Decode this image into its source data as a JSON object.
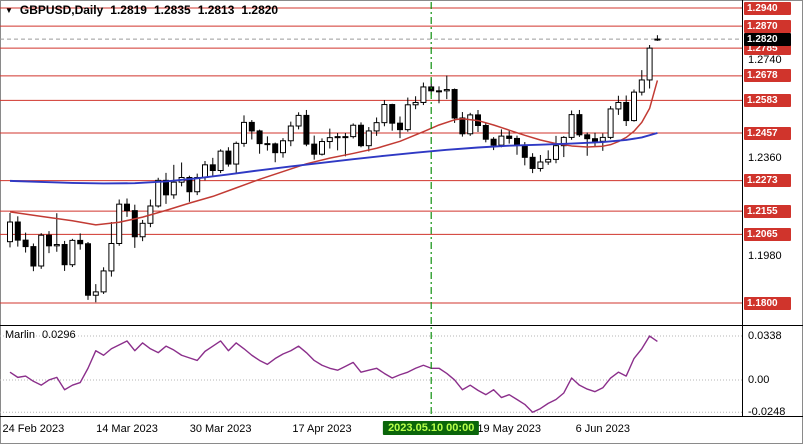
{
  "header": {
    "symbol_period": "GBPUSD,Daily",
    "ohlc": {
      "open": "1.2819",
      "high": "1.2835",
      "low": "1.2813",
      "close": "1.2820"
    }
  },
  "indicator": {
    "name": "Marlin",
    "value": "0.0296"
  },
  "icons": {
    "symbol_marker": "▼"
  },
  "colors": {
    "level_line": "#d0342c",
    "badge_red_bg": "#d0342c",
    "badge_black_bg": "#000000",
    "badge_text": "#ffffff",
    "current_price_line": "#9a9a9a",
    "ma_red": "#c23b34",
    "ma_blue": "#2f39c4",
    "marlin": "#8b2f8b",
    "vline": "#0f8f0f",
    "vline_badge_bg": "#0a650a",
    "vline_badge_text": "#b7ff4a",
    "candle_bull": "#ffffff",
    "candle_bear": "#000000",
    "candle_stroke": "#000000"
  },
  "chart_data": {
    "type": "candlestick",
    "symbol": "GBPUSD",
    "timeframe": "Daily",
    "ylim": [
      1.1715,
      1.2971
    ],
    "levels": [
      1.294,
      1.287,
      1.2785,
      1.2678,
      1.2583,
      1.2457,
      1.2273,
      1.2155,
      1.2065,
      1.18
    ],
    "current_price": 1.282,
    "axis_plain": [
      1.274,
      1.236,
      1.198
    ],
    "date_ticks": [
      {
        "i": 3,
        "label": "24 Feb 2023"
      },
      {
        "i": 15,
        "label": "14 Mar 2023"
      },
      {
        "i": 27,
        "label": "30 Mar 2023"
      },
      {
        "i": 40,
        "label": "17 Apr 2023"
      },
      {
        "i": 64,
        "label": "19 May 2023"
      },
      {
        "i": 76,
        "label": "6 Jun 2023"
      }
    ],
    "vline": {
      "i": 54,
      "label": "2023.05.10 00:00"
    },
    "candles": [
      [
        1.2037,
        1.2148,
        1.2015,
        1.2113
      ],
      [
        1.2113,
        1.2135,
        1.2018,
        1.2043
      ],
      [
        1.2043,
        1.2072,
        1.1995,
        1.2018
      ],
      [
        1.2018,
        1.203,
        1.1923,
        1.1943
      ],
      [
        1.1943,
        1.207,
        1.1932,
        1.2062
      ],
      [
        1.2062,
        1.2078,
        1.1993,
        1.2021
      ],
      [
        1.2021,
        1.2147,
        1.1998,
        1.2026
      ],
      [
        1.2026,
        1.204,
        1.1924,
        1.1948
      ],
      [
        1.1948,
        1.2048,
        1.1939,
        1.2042
      ],
      [
        1.2042,
        1.2069,
        1.2006,
        1.2029
      ],
      [
        1.2029,
        1.2036,
        1.1812,
        1.183
      ],
      [
        1.183,
        1.1873,
        1.1803,
        1.1843
      ],
      [
        1.1843,
        1.1938,
        1.1835,
        1.1924
      ],
      [
        1.1924,
        1.2113,
        1.1902,
        1.203
      ],
      [
        1.203,
        1.22,
        1.2021,
        1.2182
      ],
      [
        1.2182,
        1.2204,
        1.2133,
        1.2157
      ],
      [
        1.2157,
        1.218,
        1.2013,
        1.2056
      ],
      [
        1.2056,
        1.2121,
        1.2039,
        1.2108
      ],
      [
        1.2108,
        1.22,
        1.2093,
        1.2175
      ],
      [
        1.2175,
        1.2284,
        1.2169,
        1.2274
      ],
      [
        1.2274,
        1.2303,
        1.2183,
        1.2218
      ],
      [
        1.2218,
        1.2334,
        1.2203,
        1.2267
      ],
      [
        1.2267,
        1.2343,
        1.2251,
        1.2285
      ],
      [
        1.2285,
        1.2292,
        1.2191,
        1.223
      ],
      [
        1.223,
        1.23,
        1.2217,
        1.2285
      ],
      [
        1.2285,
        1.2349,
        1.2274,
        1.2334
      ],
      [
        1.2334,
        1.2361,
        1.229,
        1.2312
      ],
      [
        1.2312,
        1.2394,
        1.2302,
        1.2387
      ],
      [
        1.2387,
        1.2402,
        1.2327,
        1.2337
      ],
      [
        1.2337,
        1.2424,
        1.2302,
        1.2417
      ],
      [
        1.2417,
        1.2525,
        1.2404,
        1.2498
      ],
      [
        1.2498,
        1.2507,
        1.2432,
        1.2465
      ],
      [
        1.2465,
        1.247,
        1.2377,
        1.2416
      ],
      [
        1.2416,
        1.2444,
        1.2389,
        1.2415
      ],
      [
        1.2415,
        1.242,
        1.2344,
        1.2381
      ],
      [
        1.2381,
        1.2437,
        1.2362,
        1.2427
      ],
      [
        1.2427,
        1.2501,
        1.2406,
        1.2484
      ],
      [
        1.2484,
        1.2537,
        1.2471,
        1.2525
      ],
      [
        1.2525,
        1.2546,
        1.2406,
        1.2414
      ],
      [
        1.2414,
        1.2447,
        1.2354,
        1.2375
      ],
      [
        1.2375,
        1.2436,
        1.237,
        1.2424
      ],
      [
        1.2424,
        1.2474,
        1.2397,
        1.2439
      ],
      [
        1.2439,
        1.2457,
        1.239,
        1.2443
      ],
      [
        1.2443,
        1.2457,
        1.2367,
        1.2443
      ],
      [
        1.2443,
        1.2494,
        1.2436,
        1.2487
      ],
      [
        1.2487,
        1.2498,
        1.2402,
        1.2408
      ],
      [
        1.2408,
        1.248,
        1.2386,
        1.2465
      ],
      [
        1.2465,
        1.2517,
        1.2446,
        1.2497
      ],
      [
        1.2497,
        1.2584,
        1.2483,
        1.2567
      ],
      [
        1.2567,
        1.257,
        1.2466,
        1.2495
      ],
      [
        1.2495,
        1.2521,
        1.2437,
        1.247
      ],
      [
        1.247,
        1.2594,
        1.2462,
        1.2566
      ],
      [
        1.2566,
        1.2599,
        1.2549,
        1.2575
      ],
      [
        1.2575,
        1.2652,
        1.2565,
        1.2635
      ],
      [
        1.2635,
        1.2668,
        1.2603,
        1.262
      ],
      [
        1.262,
        1.2637,
        1.2572,
        1.262
      ],
      [
        1.262,
        1.2679,
        1.2588,
        1.2625
      ],
      [
        1.2625,
        1.2629,
        1.2496,
        1.2515
      ],
      [
        1.2515,
        1.2538,
        1.2443,
        1.2454
      ],
      [
        1.2454,
        1.2535,
        1.2446,
        1.2527
      ],
      [
        1.2527,
        1.2546,
        1.2461,
        1.2486
      ],
      [
        1.2486,
        1.2495,
        1.2421,
        1.2433
      ],
      [
        1.2433,
        1.2441,
        1.2391,
        1.241
      ],
      [
        1.241,
        1.2471,
        1.2402,
        1.2445
      ],
      [
        1.2445,
        1.2469,
        1.2416,
        1.2436
      ],
      [
        1.2436,
        1.2447,
        1.2373,
        1.241
      ],
      [
        1.241,
        1.2422,
        1.2332,
        1.2363
      ],
      [
        1.2363,
        1.2379,
        1.2302,
        1.232
      ],
      [
        1.232,
        1.2372,
        1.2308,
        1.2345
      ],
      [
        1.2345,
        1.239,
        1.2334,
        1.2355
      ],
      [
        1.2355,
        1.2446,
        1.234,
        1.2408
      ],
      [
        1.2408,
        1.2445,
        1.2364,
        1.244
      ],
      [
        1.244,
        1.2544,
        1.2431,
        1.2528
      ],
      [
        1.2528,
        1.2546,
        1.2442,
        1.245
      ],
      [
        1.245,
        1.2459,
        1.2369,
        1.2435
      ],
      [
        1.2435,
        1.2458,
        1.2403,
        1.2425
      ],
      [
        1.2425,
        1.2455,
        1.2388,
        1.244
      ],
      [
        1.244,
        1.2561,
        1.2433,
        1.255
      ],
      [
        1.255,
        1.2601,
        1.2527,
        1.2575
      ],
      [
        1.2575,
        1.2602,
        1.2484,
        1.2505
      ],
      [
        1.2505,
        1.2625,
        1.2501,
        1.2615
      ],
      [
        1.2615,
        1.27,
        1.2602,
        1.2662
      ],
      [
        1.2662,
        1.2797,
        1.2629,
        1.2785
      ],
      [
        1.2819,
        1.2835,
        1.2813,
        1.282
      ]
    ],
    "ma_red": [
      [
        0,
        1.2152
      ],
      [
        4,
        1.2135
      ],
      [
        8,
        1.2118
      ],
      [
        11,
        1.2102
      ],
      [
        14,
        1.2112
      ],
      [
        17,
        1.2132
      ],
      [
        20,
        1.2158
      ],
      [
        23,
        1.2186
      ],
      [
        26,
        1.2212
      ],
      [
        29,
        1.2245
      ],
      [
        32,
        1.2278
      ],
      [
        35,
        1.2308
      ],
      [
        38,
        1.2338
      ],
      [
        41,
        1.236
      ],
      [
        44,
        1.2378
      ],
      [
        47,
        1.2398
      ],
      [
        50,
        1.2425
      ],
      [
        53,
        1.2462
      ],
      [
        55,
        1.2488
      ],
      [
        57,
        1.2508
      ],
      [
        58,
        1.2512
      ],
      [
        60,
        1.2505
      ],
      [
        62,
        1.2488
      ],
      [
        64,
        1.2468
      ],
      [
        66,
        1.2448
      ],
      [
        68,
        1.243
      ],
      [
        70,
        1.2416
      ],
      [
        72,
        1.2407
      ],
      [
        74,
        1.2403
      ],
      [
        76,
        1.2406
      ],
      [
        77,
        1.2412
      ],
      [
        78,
        1.2424
      ],
      [
        79,
        1.244
      ],
      [
        80,
        1.2464
      ],
      [
        81,
        1.2498
      ],
      [
        82,
        1.2552
      ],
      [
        83,
        1.266
      ]
    ],
    "ma_blue": [
      [
        0,
        1.2272
      ],
      [
        4,
        1.2268
      ],
      [
        8,
        1.2264
      ],
      [
        12,
        1.2262
      ],
      [
        16,
        1.2263
      ],
      [
        20,
        1.227
      ],
      [
        24,
        1.2282
      ],
      [
        28,
        1.2297
      ],
      [
        32,
        1.2313
      ],
      [
        36,
        1.2328
      ],
      [
        40,
        1.2342
      ],
      [
        44,
        1.2356
      ],
      [
        48,
        1.2369
      ],
      [
        52,
        1.2381
      ],
      [
        56,
        1.2392
      ],
      [
        60,
        1.2401
      ],
      [
        64,
        1.2408
      ],
      [
        68,
        1.2412
      ],
      [
        72,
        1.2416
      ],
      [
        76,
        1.2422
      ],
      [
        79,
        1.243
      ],
      [
        81,
        1.244
      ],
      [
        83,
        1.2457
      ]
    ],
    "marlin": {
      "ylim": [
        -0.0277,
        0.0415
      ],
      "axis": [
        {
          "v": 0.0338,
          "label": "0.0338"
        },
        {
          "v": 0,
          "label": "0.00"
        },
        {
          "v": -0.0248,
          "label": "-0.0248"
        }
      ],
      "values": [
        0.006,
        0.002,
        0.003,
        -0.001,
        -0.004,
        0,
        0.002,
        -0.0075,
        -0.004,
        -0.002,
        0.009,
        0.0225,
        0.019,
        0.024,
        0.027,
        0.03,
        0.0225,
        0.0285,
        0.024,
        0.021,
        0.026,
        0.023,
        0.019,
        0.017,
        0.015,
        0.022,
        0.026,
        0.03,
        0.0225,
        0.0285,
        0.024,
        0.019,
        0.015,
        0.012,
        0.0165,
        0.02,
        0.0225,
        0.026,
        0.021,
        0.015,
        0.0113,
        0.009,
        0.0075,
        0.0105,
        0.0135,
        0.006,
        0.0075,
        0.009,
        0.005,
        0.0015,
        0.004,
        0.006,
        0.009,
        0.0113,
        0.009,
        0.009,
        0.005,
        0,
        -0.0075,
        -0.004,
        -0.008,
        -0.0113,
        -0.0075,
        -0.0135,
        -0.0113,
        -0.015,
        -0.0188,
        -0.0248,
        -0.022,
        -0.018,
        -0.015,
        -0.01,
        0.0015,
        -0.004,
        -0.007,
        -0.009,
        -0.006,
        0.0015,
        0.006,
        0.003,
        0.0165,
        0.024,
        0.0338,
        0.0296
      ]
    }
  }
}
